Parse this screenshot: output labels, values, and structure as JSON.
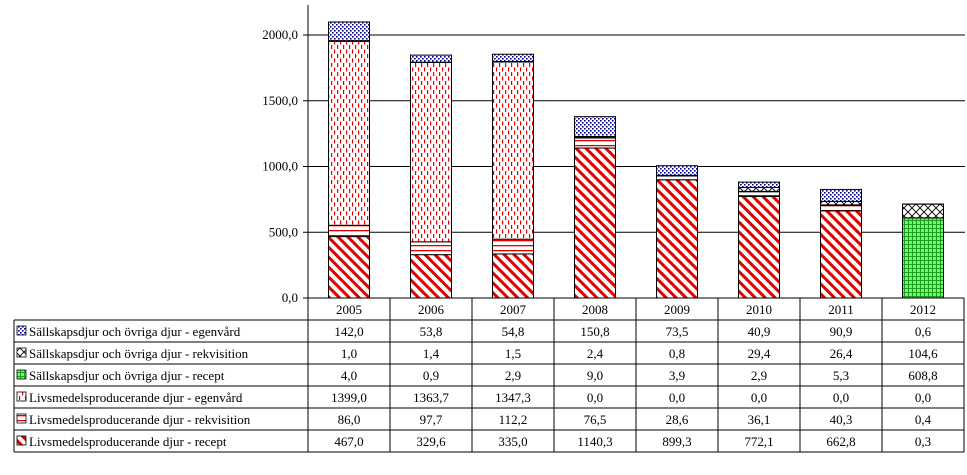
{
  "chart_data": {
    "type": "bar",
    "stacked": true,
    "title": "",
    "xlabel": "",
    "ylabel": "",
    "ylim": [
      0,
      2000
    ],
    "yticks": [
      "0,0",
      "500,0",
      "1000,0",
      "1500,0",
      "2000,0"
    ],
    "ytick_values": [
      0,
      500,
      1000,
      1500,
      2000
    ],
    "grid": true,
    "legend_placement": "data-table-left",
    "categories": [
      "2005",
      "2006",
      "2007",
      "2008",
      "2009",
      "2010",
      "2011",
      "2012"
    ],
    "series": [
      {
        "name": "Livsmedelsproducerande djur - recept",
        "pattern": "diag-red",
        "color": "#ff0000",
        "values": [
          467.0,
          329.6,
          335.0,
          1140.3,
          899.3,
          772.1,
          662.8,
          0.3
        ],
        "labels": [
          "467,0",
          "329,6",
          "335,0",
          "1140,3",
          "899,3",
          "772,1",
          "662,8",
          "0,3"
        ]
      },
      {
        "name": "Livsmedelsproducerande djur - rekvisition",
        "pattern": "hlines-red",
        "color": "#ff0000",
        "values": [
          86.0,
          97.7,
          112.2,
          76.5,
          28.6,
          36.1,
          40.3,
          0.4
        ],
        "labels": [
          "86,0",
          "97,7",
          "112,2",
          "76,5",
          "28,6",
          "36,1",
          "40,3",
          "0,4"
        ]
      },
      {
        "name": "Livsmedelsproducerande djur - egenvård",
        "pattern": "dashes-red",
        "color": "#ff0000",
        "values": [
          1399.0,
          1363.7,
          1347.3,
          0.0,
          0.0,
          0.0,
          0.0,
          0.0
        ],
        "labels": [
          "1399,0",
          "1363,7",
          "1347,3",
          "0,0",
          "0,0",
          "0,0",
          "0,0",
          "0,0"
        ]
      },
      {
        "name": "Sällskapsdjur och övriga djur - recept",
        "pattern": "grid-green",
        "color": "#33cc33",
        "values": [
          4.0,
          0.9,
          2.9,
          9.0,
          3.9,
          2.9,
          5.3,
          608.8
        ],
        "labels": [
          "4,0",
          "0,9",
          "2,9",
          "9,0",
          "3,9",
          "2,9",
          "5,3",
          "608,8"
        ]
      },
      {
        "name": "Sällskapsdjur och övriga djur - rekvisition",
        "pattern": "cross-black",
        "color": "#000000",
        "values": [
          1.0,
          1.4,
          1.5,
          2.4,
          0.8,
          29.4,
          26.4,
          104.6
        ],
        "labels": [
          "1,0",
          "1,4",
          "1,5",
          "2,4",
          "0,8",
          "29,4",
          "26,4",
          "104,6"
        ]
      },
      {
        "name": "Sällskapsdjur och övriga djur - egenvård",
        "pattern": "dots-blue",
        "color": "#000080",
        "values": [
          142.0,
          53.8,
          54.8,
          150.8,
          73.5,
          40.9,
          90.9,
          0.6
        ],
        "labels": [
          "142,0",
          "53,8",
          "54,8",
          "150,8",
          "73,5",
          "40,9",
          "90,9",
          "0,6"
        ]
      }
    ],
    "table_row_order": [
      5,
      4,
      3,
      2,
      1,
      0
    ]
  }
}
